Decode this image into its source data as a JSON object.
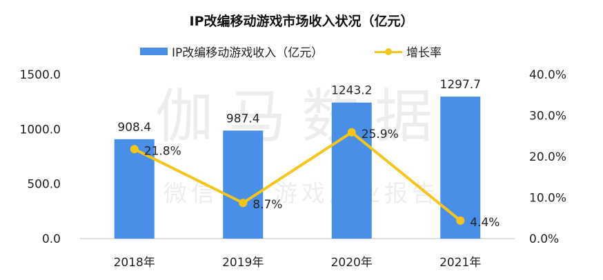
{
  "chart_data": {
    "type": "bar+line",
    "title": "IP改编移动游戏市场收入状况（亿元）",
    "categories": [
      "2018年",
      "2019年",
      "2020年",
      "2021年"
    ],
    "series": [
      {
        "name": "IP改编移动游戏收入（亿元）",
        "type": "bar",
        "axis": "left",
        "values": [
          908.4,
          987.4,
          1243.2,
          1297.7
        ],
        "labels": [
          "908.4",
          "987.4",
          "1243.2",
          "1297.7"
        ]
      },
      {
        "name": "增长率",
        "type": "line",
        "axis": "right",
        "values": [
          21.8,
          8.7,
          25.9,
          4.4
        ],
        "labels": [
          "21.8%",
          "8.7%",
          "25.9%",
          "4.4%"
        ]
      }
    ],
    "y_left": {
      "min": 0,
      "max": 1500,
      "ticks": [
        "0.0",
        "500.0",
        "1000.0",
        "1500.0"
      ]
    },
    "y_right": {
      "min": 0,
      "max": 40,
      "ticks": [
        "0.0%",
        "10.0%",
        "20.0%",
        "30.0%",
        "40.0%"
      ]
    },
    "legend_position": "top",
    "grid": false,
    "colors": {
      "bar": "#4a8fe7",
      "line": "#f5c518"
    },
    "watermark": {
      "line1": "伽马数据",
      "line2": "微信号：游戏产业报告"
    }
  }
}
